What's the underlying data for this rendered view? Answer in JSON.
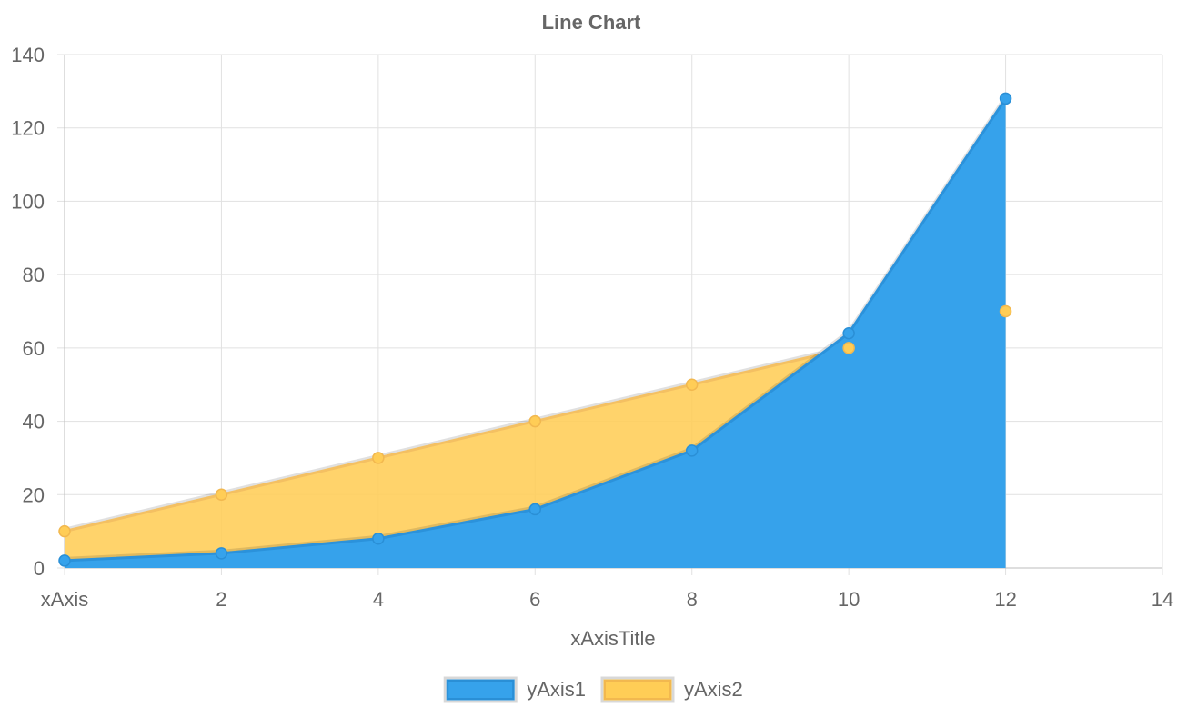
{
  "chart_data": {
    "type": "area",
    "title": "Line Chart",
    "xlabel": "xAxisTitle",
    "ylabel": "",
    "x_tick_labels": [
      "xAxis",
      "2",
      "4",
      "6",
      "8",
      "10",
      "12",
      "14"
    ],
    "y_tick_labels": [
      "0",
      "20",
      "40",
      "60",
      "80",
      "100",
      "120",
      "140"
    ],
    "xlim": [
      0,
      14
    ],
    "ylim": [
      0,
      140
    ],
    "grid": true,
    "legend_position": "bottom",
    "series": [
      {
        "name": "yAxis1",
        "color": "#36a2eb",
        "fill": "#36a2eb",
        "points": [
          [
            0,
            2
          ],
          [
            2,
            4
          ],
          [
            4,
            8
          ],
          [
            6,
            16
          ],
          [
            8,
            32
          ],
          [
            10,
            64
          ],
          [
            12,
            128
          ]
        ]
      },
      {
        "name": "yAxis2",
        "color": "#ffcd56",
        "fill": "#ffcd56",
        "points": [
          [
            0,
            10
          ],
          [
            2,
            20
          ],
          [
            4,
            30
          ],
          [
            6,
            40
          ],
          [
            8,
            50
          ],
          [
            10,
            60
          ],
          [
            12,
            70
          ]
        ]
      }
    ]
  }
}
